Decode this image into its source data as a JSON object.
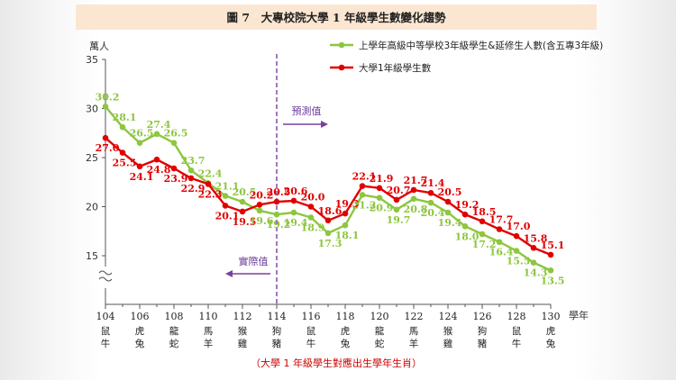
{
  "figure": {
    "title": "圖 7　大專校院大學 1 年級學生數變化趨勢",
    "unit": "萬人",
    "x_unit": "學年",
    "footnote": "（大學 1 年級學生對應出生學年生肖）",
    "forecast_label": "預測值",
    "actual_label": "實際值"
  },
  "colors": {
    "green": "#8dc63f",
    "red": "#e00000",
    "divider": "#7a3fa0",
    "title_band": "#fbe6d2"
  },
  "chart_data": {
    "type": "line",
    "title": "圖 7　大專校院大學 1 年級學生數變化趨勢",
    "ylabel": "萬人",
    "xlabel": "學年",
    "ylim": [
      10,
      35
    ],
    "xlim": [
      104,
      130
    ],
    "y_axis_break": true,
    "yticks": [
      15,
      20,
      25,
      30,
      35
    ],
    "xticks": [
      104,
      106,
      108,
      110,
      112,
      114,
      116,
      118,
      120,
      122,
      124,
      126,
      128,
      130
    ],
    "zodiac": [
      [
        "鼠",
        "牛"
      ],
      [
        "虎",
        "兔"
      ],
      [
        "龍",
        "蛇"
      ],
      [
        "馬",
        "羊"
      ],
      [
        "猴",
        "雞"
      ],
      [
        "狗",
        "豬"
      ],
      [
        "鼠",
        "牛"
      ],
      [
        "虎",
        "兔"
      ],
      [
        "龍",
        "蛇"
      ],
      [
        "馬",
        "羊"
      ],
      [
        "猴",
        "雞"
      ],
      [
        "狗",
        "豬"
      ],
      [
        "鼠",
        "牛"
      ],
      [
        "虎",
        "兔"
      ]
    ],
    "forecast_start": 114,
    "grid": false,
    "legend_position": "top-right",
    "x": [
      104,
      105,
      106,
      107,
      108,
      109,
      110,
      111,
      112,
      113,
      114,
      115,
      116,
      117,
      118,
      119,
      120,
      121,
      122,
      123,
      124,
      125,
      126,
      127,
      128,
      129,
      130
    ],
    "series": [
      {
        "name": "上學年高級中等學校3年級學生&延修生人數(含五專3年級)",
        "color": "#8dc63f",
        "values": [
          30.2,
          28.1,
          26.5,
          27.4,
          26.5,
          23.7,
          22.4,
          21.1,
          20.5,
          19.6,
          19.2,
          19.4,
          18.9,
          17.3,
          18.1,
          21.2,
          20.9,
          19.7,
          20.8,
          20.4,
          19.4,
          18.0,
          17.2,
          16.4,
          15.5,
          14.3,
          13.5
        ]
      },
      {
        "name": "大學1年級學生數",
        "color": "#e00000",
        "values": [
          27.0,
          25.5,
          24.1,
          24.8,
          23.9,
          22.9,
          22.3,
          20.1,
          19.5,
          20.2,
          20.5,
          20.6,
          20.0,
          18.6,
          19.3,
          22.1,
          21.9,
          20.7,
          21.7,
          21.4,
          20.5,
          19.2,
          18.5,
          17.7,
          17.0,
          15.8,
          15.1
        ]
      }
    ]
  }
}
